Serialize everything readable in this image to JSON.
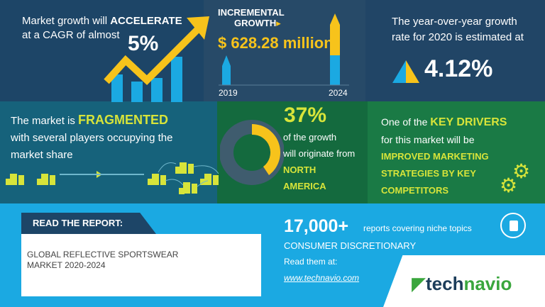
{
  "cagr": {
    "line1_prefix": "Market growth will ",
    "line1_bold": "ACCELERATE",
    "line2": "at a CAGR of almost",
    "value": "5%"
  },
  "incremental": {
    "title_line1": "INCREMENTAL",
    "title_line2": "GROWTH",
    "value": "$ 628.28 million",
    "year_start": "2019",
    "year_end": "2024"
  },
  "yoy": {
    "line1": "The year-over-year growth",
    "line2": "rate for 2020 is estimated at",
    "value": "4.12%"
  },
  "fragmented": {
    "line1_prefix": "The market is ",
    "line1_bold": "FRAGMENTED",
    "line2": "with several players occupying the",
    "line3": "market share"
  },
  "region": {
    "percent": "37%",
    "percent_value": 37,
    "line1": "of the growth",
    "line2": "will originate from",
    "region_line1": "NORTH",
    "region_line2": "AMERICA"
  },
  "drivers": {
    "line1_prefix": "One of the ",
    "line1_bold": "KEY DRIVERS",
    "line2": "for this market will be",
    "driver_line1": "IMPROVED MARKETING",
    "driver_line2": "STRATEGIES BY KEY",
    "driver_line3": "COMPETITORS"
  },
  "report": {
    "label": "READ THE REPORT:",
    "title_line1": "GLOBAL REFLECTIVE SPORTSWEAR",
    "title_line2": "MARKET 2020-2024"
  },
  "promo": {
    "count": "17,000+",
    "count_text": "reports covering niche topics",
    "category": "CONSUMER DISCRETIONARY",
    "read_at": "Read them at:",
    "url": "www.technavio.com"
  },
  "logo": {
    "part1": "tech",
    "part2": "navio"
  },
  "colors": {
    "yellow": "#f7c31b",
    "blue": "#1ba9e2",
    "lime": "#d7e43a",
    "navy": "#1d4567",
    "green": "#1a7a45",
    "logo_green": "#3aa63d",
    "logo_dark": "#1c3d5a"
  }
}
